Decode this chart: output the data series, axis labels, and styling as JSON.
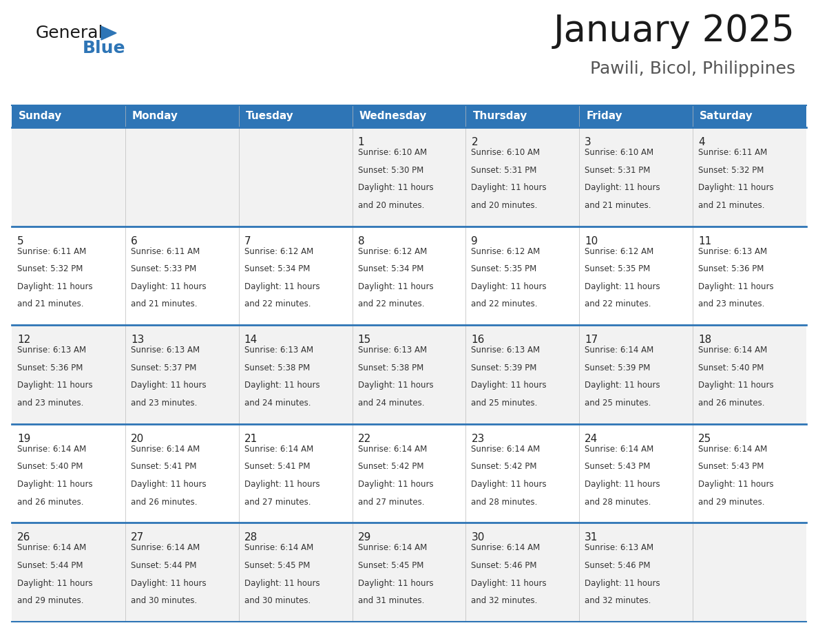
{
  "title": "January 2025",
  "subtitle": "Pawili, Bicol, Philippines",
  "days_of_week": [
    "Sunday",
    "Monday",
    "Tuesday",
    "Wednesday",
    "Thursday",
    "Friday",
    "Saturday"
  ],
  "header_bg": "#2E75B6",
  "header_text_color": "#FFFFFF",
  "row_bg_odd": "#F2F2F2",
  "row_bg_even": "#FFFFFF",
  "separator_color": "#2E75B6",
  "calendar_data": [
    [
      null,
      null,
      null,
      {
        "day": 1,
        "sunrise": "6:10 AM",
        "sunset": "5:30 PM",
        "daylight": "11 hours and 20 minutes."
      },
      {
        "day": 2,
        "sunrise": "6:10 AM",
        "sunset": "5:31 PM",
        "daylight": "11 hours and 20 minutes."
      },
      {
        "day": 3,
        "sunrise": "6:10 AM",
        "sunset": "5:31 PM",
        "daylight": "11 hours and 21 minutes."
      },
      {
        "day": 4,
        "sunrise": "6:11 AM",
        "sunset": "5:32 PM",
        "daylight": "11 hours and 21 minutes."
      }
    ],
    [
      {
        "day": 5,
        "sunrise": "6:11 AM",
        "sunset": "5:32 PM",
        "daylight": "11 hours and 21 minutes."
      },
      {
        "day": 6,
        "sunrise": "6:11 AM",
        "sunset": "5:33 PM",
        "daylight": "11 hours and 21 minutes."
      },
      {
        "day": 7,
        "sunrise": "6:12 AM",
        "sunset": "5:34 PM",
        "daylight": "11 hours and 22 minutes."
      },
      {
        "day": 8,
        "sunrise": "6:12 AM",
        "sunset": "5:34 PM",
        "daylight": "11 hours and 22 minutes."
      },
      {
        "day": 9,
        "sunrise": "6:12 AM",
        "sunset": "5:35 PM",
        "daylight": "11 hours and 22 minutes."
      },
      {
        "day": 10,
        "sunrise": "6:12 AM",
        "sunset": "5:35 PM",
        "daylight": "11 hours and 22 minutes."
      },
      {
        "day": 11,
        "sunrise": "6:13 AM",
        "sunset": "5:36 PM",
        "daylight": "11 hours and 23 minutes."
      }
    ],
    [
      {
        "day": 12,
        "sunrise": "6:13 AM",
        "sunset": "5:36 PM",
        "daylight": "11 hours and 23 minutes."
      },
      {
        "day": 13,
        "sunrise": "6:13 AM",
        "sunset": "5:37 PM",
        "daylight": "11 hours and 23 minutes."
      },
      {
        "day": 14,
        "sunrise": "6:13 AM",
        "sunset": "5:38 PM",
        "daylight": "11 hours and 24 minutes."
      },
      {
        "day": 15,
        "sunrise": "6:13 AM",
        "sunset": "5:38 PM",
        "daylight": "11 hours and 24 minutes."
      },
      {
        "day": 16,
        "sunrise": "6:13 AM",
        "sunset": "5:39 PM",
        "daylight": "11 hours and 25 minutes."
      },
      {
        "day": 17,
        "sunrise": "6:14 AM",
        "sunset": "5:39 PM",
        "daylight": "11 hours and 25 minutes."
      },
      {
        "day": 18,
        "sunrise": "6:14 AM",
        "sunset": "5:40 PM",
        "daylight": "11 hours and 26 minutes."
      }
    ],
    [
      {
        "day": 19,
        "sunrise": "6:14 AM",
        "sunset": "5:40 PM",
        "daylight": "11 hours and 26 minutes."
      },
      {
        "day": 20,
        "sunrise": "6:14 AM",
        "sunset": "5:41 PM",
        "daylight": "11 hours and 26 minutes."
      },
      {
        "day": 21,
        "sunrise": "6:14 AM",
        "sunset": "5:41 PM",
        "daylight": "11 hours and 27 minutes."
      },
      {
        "day": 22,
        "sunrise": "6:14 AM",
        "sunset": "5:42 PM",
        "daylight": "11 hours and 27 minutes."
      },
      {
        "day": 23,
        "sunrise": "6:14 AM",
        "sunset": "5:42 PM",
        "daylight": "11 hours and 28 minutes."
      },
      {
        "day": 24,
        "sunrise": "6:14 AM",
        "sunset": "5:43 PM",
        "daylight": "11 hours and 28 minutes."
      },
      {
        "day": 25,
        "sunrise": "6:14 AM",
        "sunset": "5:43 PM",
        "daylight": "11 hours and 29 minutes."
      }
    ],
    [
      {
        "day": 26,
        "sunrise": "6:14 AM",
        "sunset": "5:44 PM",
        "daylight": "11 hours and 29 minutes."
      },
      {
        "day": 27,
        "sunrise": "6:14 AM",
        "sunset": "5:44 PM",
        "daylight": "11 hours and 30 minutes."
      },
      {
        "day": 28,
        "sunrise": "6:14 AM",
        "sunset": "5:45 PM",
        "daylight": "11 hours and 30 minutes."
      },
      {
        "day": 29,
        "sunrise": "6:14 AM",
        "sunset": "5:45 PM",
        "daylight": "11 hours and 31 minutes."
      },
      {
        "day": 30,
        "sunrise": "6:14 AM",
        "sunset": "5:46 PM",
        "daylight": "11 hours and 32 minutes."
      },
      {
        "day": 31,
        "sunrise": "6:13 AM",
        "sunset": "5:46 PM",
        "daylight": "11 hours and 32 minutes."
      },
      null
    ]
  ],
  "logo_text_general": "General",
  "logo_text_blue": "Blue",
  "logo_color_general": "#1a1a1a",
  "logo_color_blue": "#2E75B6",
  "logo_triangle_color": "#2E75B6",
  "title_fontsize": 38,
  "subtitle_fontsize": 18,
  "header_fontsize": 11,
  "day_num_fontsize": 11,
  "info_fontsize": 8.5
}
